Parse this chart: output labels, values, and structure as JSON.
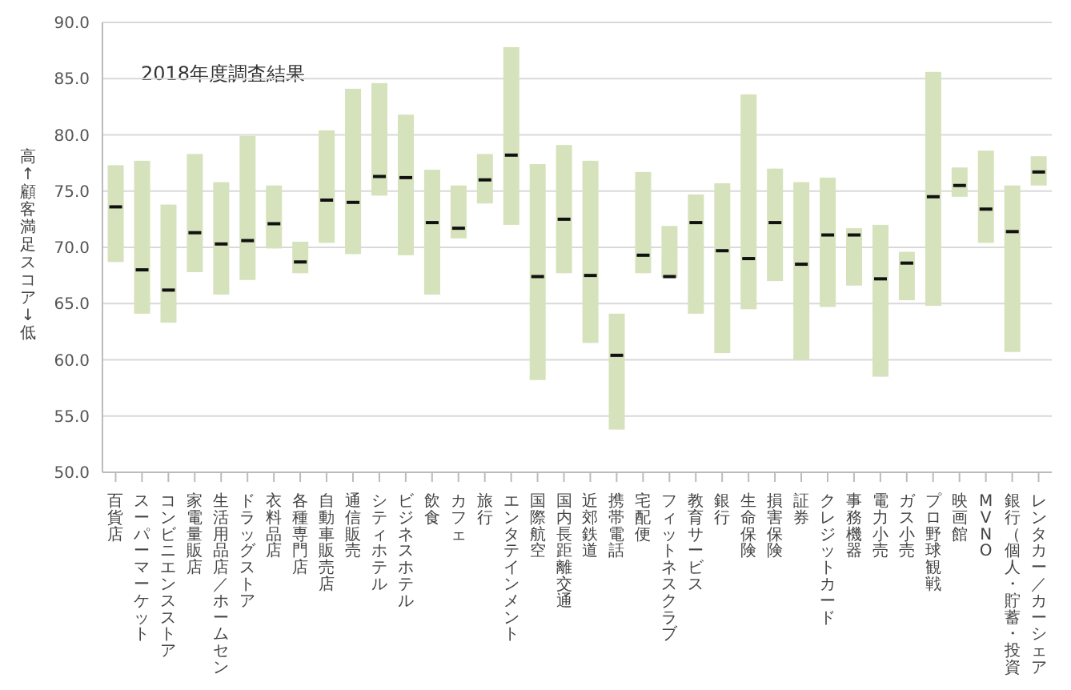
{
  "chart_data": {
    "type": "box",
    "ylabel": "高↑　顧客満足スコア　↓低",
    "annotations": [
      "2018年度調査結果"
    ],
    "categories": [
      "百貨店",
      "スーパーマーケット",
      "コンビニエンスストア",
      "家電量販店",
      "生活用品店／ホームセン",
      "ドラッグストア",
      "衣料品店",
      "各種専門店",
      "自動車販売店",
      "通信販売",
      "シティホテル",
      "ビジネスホテル",
      "飲食",
      "カフェ",
      "旅行",
      "エンタテインメント",
      "国際航空",
      "国内長距離交通",
      "近郊鉄道",
      "携帯電話",
      "宅配便",
      "フィットネスクラブ",
      "教育サービス",
      "銀行",
      "生命保険",
      "損害保険",
      "証券",
      "クレジットカード",
      "事務機器",
      "電力小売",
      "ガス小売",
      "プロ野球観戦",
      "映画館",
      "MVNO",
      "銀行（個人・貯蓄・投資",
      "レンタカー／カーシェア"
    ],
    "series": [
      {
        "color": "#d6e2bb",
        "boxes": [
          {
            "low": 68.7,
            "q1": 68.7,
            "median": 73.6,
            "q3": 77.3,
            "high": 77.3
          },
          {
            "low": 64.1,
            "q1": 64.1,
            "median": 68.0,
            "q3": 77.7,
            "high": 77.7
          },
          {
            "low": 63.3,
            "q1": 63.3,
            "median": 66.2,
            "q3": 73.8,
            "high": 73.8
          },
          {
            "low": 67.8,
            "q1": 67.8,
            "median": 71.3,
            "q3": 78.3,
            "high": 78.3
          },
          {
            "low": 65.8,
            "q1": 65.8,
            "median": 70.3,
            "q3": 75.8,
            "high": 75.8
          },
          {
            "low": 67.1,
            "q1": 67.1,
            "median": 70.6,
            "q3": 79.9,
            "high": 79.9
          },
          {
            "low": 69.9,
            "q1": 69.9,
            "median": 72.1,
            "q3": 75.5,
            "high": 75.5
          },
          {
            "low": 67.7,
            "q1": 67.7,
            "median": 68.7,
            "q3": 70.5,
            "high": 70.5
          },
          {
            "low": 70.4,
            "q1": 70.4,
            "median": 74.2,
            "q3": 80.4,
            "high": 80.4
          },
          {
            "low": 69.4,
            "q1": 69.4,
            "median": 74.0,
            "q3": 84.1,
            "high": 84.1
          },
          {
            "low": 74.6,
            "q1": 74.6,
            "median": 76.3,
            "q3": 84.6,
            "high": 84.6
          },
          {
            "low": 69.3,
            "q1": 69.3,
            "median": 76.2,
            "q3": 81.8,
            "high": 81.8
          },
          {
            "low": 65.8,
            "q1": 65.8,
            "median": 72.2,
            "q3": 76.9,
            "high": 76.9
          },
          {
            "low": 70.8,
            "q1": 70.8,
            "median": 71.7,
            "q3": 75.5,
            "high": 75.5
          },
          {
            "low": 73.9,
            "q1": 73.9,
            "median": 76.0,
            "q3": 78.3,
            "high": 78.3
          },
          {
            "low": 72.0,
            "q1": 72.0,
            "median": 78.2,
            "q3": 87.8,
            "high": 87.8
          },
          {
            "low": 58.2,
            "q1": 58.2,
            "median": 67.4,
            "q3": 77.4,
            "high": 77.4
          },
          {
            "low": 67.7,
            "q1": 67.7,
            "median": 72.5,
            "q3": 79.1,
            "high": 79.1
          },
          {
            "low": 61.5,
            "q1": 61.5,
            "median": 67.5,
            "q3": 77.7,
            "high": 77.7
          },
          {
            "low": 53.8,
            "q1": 53.8,
            "median": 60.4,
            "q3": 64.1,
            "high": 64.1
          },
          {
            "low": 67.7,
            "q1": 67.7,
            "median": 69.3,
            "q3": 76.7,
            "high": 76.7
          },
          {
            "low": 67.3,
            "q1": 67.3,
            "median": 67.4,
            "q3": 71.9,
            "high": 71.9
          },
          {
            "low": 64.1,
            "q1": 64.1,
            "median": 72.2,
            "q3": 74.7,
            "high": 74.7
          },
          {
            "low": 60.6,
            "q1": 60.6,
            "median": 69.7,
            "q3": 75.7,
            "high": 75.7
          },
          {
            "low": 64.5,
            "q1": 64.5,
            "median": 69.0,
            "q3": 83.6,
            "high": 83.6
          },
          {
            "low": 67.0,
            "q1": 67.0,
            "median": 72.2,
            "q3": 77.0,
            "high": 77.0
          },
          {
            "low": 60.0,
            "q1": 60.0,
            "median": 68.5,
            "q3": 75.8,
            "high": 75.8
          },
          {
            "low": 64.7,
            "q1": 64.7,
            "median": 71.1,
            "q3": 76.2,
            "high": 76.2
          },
          {
            "low": 66.6,
            "q1": 66.6,
            "median": 71.1,
            "q3": 71.7,
            "high": 71.7
          },
          {
            "low": 58.5,
            "q1": 58.5,
            "median": 67.2,
            "q3": 72.0,
            "high": 72.0
          },
          {
            "low": 65.3,
            "q1": 65.3,
            "median": 68.6,
            "q3": 69.6,
            "high": 69.6
          },
          {
            "low": 64.8,
            "q1": 64.8,
            "median": 74.5,
            "q3": 85.6,
            "high": 85.6
          },
          {
            "low": 74.5,
            "q1": 74.5,
            "median": 75.5,
            "q3": 77.1,
            "high": 77.1
          },
          {
            "low": 70.4,
            "q1": 70.4,
            "median": 73.4,
            "q3": 78.6,
            "high": 78.6
          },
          {
            "low": 60.7,
            "q1": 60.7,
            "median": 71.4,
            "q3": 75.5,
            "high": 75.5
          },
          {
            "low": 75.5,
            "q1": 75.5,
            "median": 76.7,
            "q3": 78.1,
            "high": 78.1
          }
        ]
      }
    ],
    "ylim": [
      50,
      90
    ],
    "yticks": [
      {
        "value": 50,
        "label": "50.0"
      },
      {
        "value": 55,
        "label": "55.0"
      },
      {
        "value": 60,
        "label": "60.0"
      },
      {
        "value": 65,
        "label": "65.0"
      },
      {
        "value": 70,
        "label": "70.0"
      },
      {
        "value": 75,
        "label": "75.0"
      },
      {
        "value": 80,
        "label": "80.0"
      },
      {
        "value": 85,
        "label": "85.0"
      },
      {
        "value": 90,
        "label": "90.0"
      }
    ],
    "grid": "y",
    "legend": false
  }
}
